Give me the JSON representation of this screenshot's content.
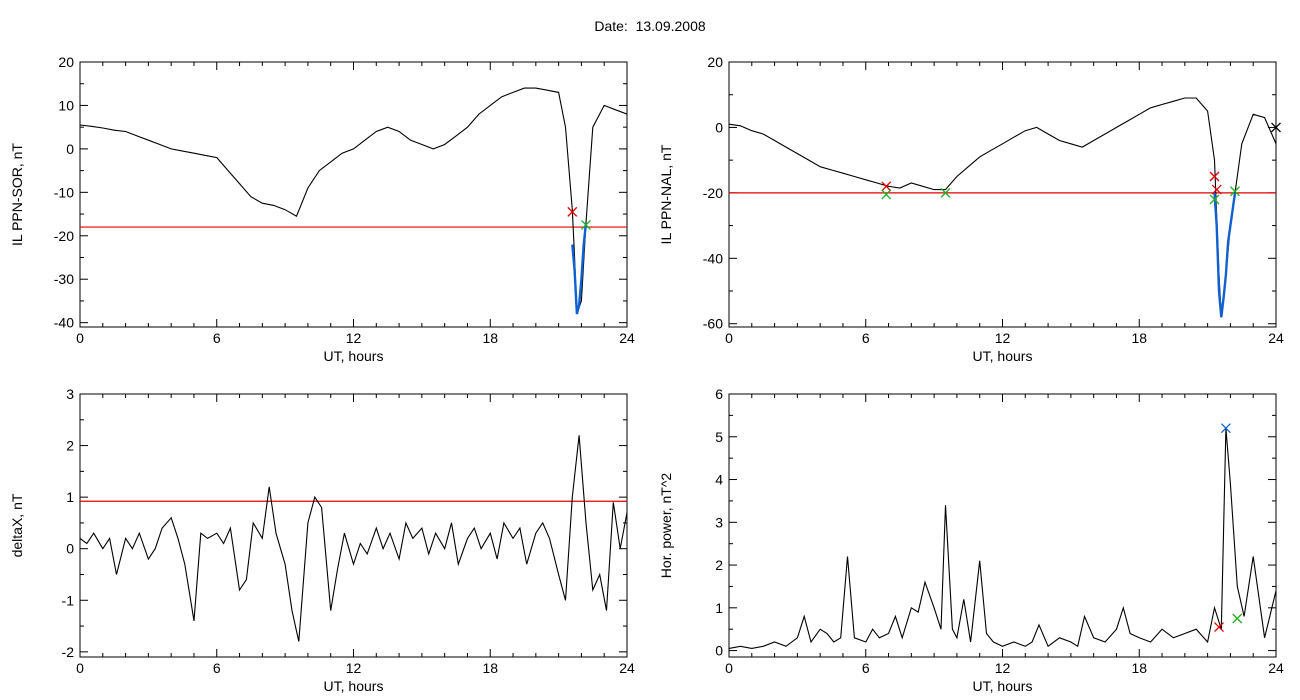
{
  "header": {
    "date_label": "Date:",
    "date_value": "13.09.2008"
  },
  "colors": {
    "line": "#000000",
    "threshold": "#e00000",
    "event": "#1060d0",
    "marker_red": "#e00000",
    "marker_green": "#20b020",
    "marker_blue": "#1060d0"
  },
  "chart_data": [
    {
      "type": "line",
      "xlabel": "UT, hours",
      "ylabel": "IL PPN-SOR, nT",
      "xlim": [
        0,
        24
      ],
      "ylim": [
        -41,
        20
      ],
      "xticks": [
        0,
        6,
        12,
        18,
        24
      ],
      "yticks": [
        -40,
        -30,
        -20,
        -10,
        0,
        10,
        20
      ],
      "threshold": -18,
      "series": [
        {
          "x": [
            0,
            0.5,
            1,
            1.5,
            2,
            2.5,
            3,
            3.5,
            4,
            4.5,
            5,
            5.5,
            6,
            6.5,
            7,
            7.5,
            8,
            8.5,
            9,
            9.5,
            10,
            10.5,
            11,
            11.5,
            12,
            12.5,
            13,
            13.5,
            14,
            14.5,
            15,
            15.5,
            16,
            16.5,
            17,
            17.5,
            18,
            18.5,
            19,
            19.5,
            20,
            20.5,
            21,
            21.3,
            21.6,
            21.7,
            21.8,
            22,
            22.2,
            22.5,
            23,
            23.5,
            24
          ],
          "y": [
            5.5,
            5.2,
            4.8,
            4.3,
            4,
            3,
            2,
            1,
            0,
            -0.5,
            -1,
            -1.5,
            -2,
            -5,
            -8,
            -11,
            -12.5,
            -13,
            -14,
            -15.5,
            -9,
            -5,
            -3,
            -1,
            0,
            2,
            4,
            5,
            4,
            2,
            1,
            0,
            1,
            3,
            5,
            8,
            10,
            12,
            13,
            14,
            14,
            13.5,
            13,
            5,
            -14,
            -25,
            -38,
            -35,
            -17,
            5,
            10,
            9,
            8
          ]
        }
      ],
      "event_segment": {
        "x": [
          21.6,
          21.7,
          21.8,
          21.9,
          22.0,
          22.1,
          22.2
        ],
        "y": [
          -22,
          -28,
          -38,
          -36,
          -30,
          -22,
          -17
        ]
      },
      "markers": [
        {
          "x": 21.6,
          "y": -14.5,
          "color": "red"
        },
        {
          "x": 22.2,
          "y": -17.5,
          "color": "green"
        }
      ]
    },
    {
      "type": "line",
      "xlabel": "UT, hours",
      "ylabel": "IL PPN-NAL, nT",
      "xlim": [
        0,
        24
      ],
      "ylim": [
        -61,
        20
      ],
      "xticks": [
        0,
        6,
        12,
        18,
        24
      ],
      "yticks": [
        -60,
        -40,
        -20,
        0,
        20
      ],
      "threshold": -20,
      "series": [
        {
          "x": [
            0,
            0.5,
            1,
            1.5,
            2,
            2.5,
            3,
            3.5,
            4,
            4.5,
            5,
            5.5,
            6,
            6.5,
            7,
            7.5,
            8,
            8.5,
            9,
            9.5,
            10,
            10.5,
            11,
            11.5,
            12,
            12.5,
            13,
            13.5,
            14,
            14.5,
            15,
            15.5,
            16,
            16.5,
            17,
            17.5,
            18,
            18.5,
            19,
            19.5,
            20,
            20.5,
            21,
            21.3,
            21.5,
            21.6,
            21.8,
            22,
            22.2,
            22.5,
            23,
            23.5,
            24
          ],
          "y": [
            1,
            0.5,
            -1,
            -2,
            -4,
            -6,
            -8,
            -10,
            -12,
            -13,
            -14,
            -15,
            -16,
            -17,
            -18,
            -18.5,
            -17,
            -18,
            -19,
            -19,
            -15,
            -12,
            -9,
            -7,
            -5,
            -3,
            -1,
            0,
            -2,
            -4,
            -5,
            -6,
            -4,
            -2,
            0,
            2,
            4,
            6,
            7,
            8,
            9,
            9,
            5,
            -10,
            -45,
            -58,
            -45,
            -30,
            -20,
            -5,
            4,
            3,
            -5
          ]
        }
      ],
      "event_segment": {
        "x": [
          21.3,
          21.4,
          21.5,
          21.6,
          21.7,
          21.8,
          21.9,
          22.0,
          22.1,
          22.2
        ],
        "y": [
          -20,
          -30,
          -50,
          -58,
          -52,
          -45,
          -35,
          -30,
          -25,
          -20
        ]
      },
      "markers": [
        {
          "x": 6.9,
          "y": -18,
          "color": "red"
        },
        {
          "x": 6.9,
          "y": -20.5,
          "color": "green"
        },
        {
          "x": 9.5,
          "y": -20,
          "color": "green"
        },
        {
          "x": 21.3,
          "y": -15,
          "color": "red"
        },
        {
          "x": 21.4,
          "y": -19,
          "color": "red"
        },
        {
          "x": 21.3,
          "y": -22,
          "color": "green"
        },
        {
          "x": 22.2,
          "y": -19.5,
          "color": "green"
        },
        {
          "x": 24,
          "y": 0,
          "color": "black"
        }
      ]
    },
    {
      "type": "line",
      "xlabel": "UT, hours",
      "ylabel": "deltaX, nT",
      "xlim": [
        0,
        24
      ],
      "ylim": [
        -2.1,
        3
      ],
      "xticks": [
        0,
        6,
        12,
        18,
        24
      ],
      "yticks": [
        -2,
        -1,
        0,
        1,
        2,
        3
      ],
      "threshold": 0.92,
      "series": [
        {
          "x": [
            0,
            0.3,
            0.6,
            1,
            1.3,
            1.6,
            2,
            2.3,
            2.6,
            3,
            3.3,
            3.6,
            4,
            4.3,
            4.6,
            5,
            5.3,
            5.6,
            6,
            6.3,
            6.6,
            7,
            7.3,
            7.6,
            8,
            8.3,
            8.6,
            9,
            9.3,
            9.6,
            10,
            10.3,
            10.6,
            11,
            11.3,
            11.6,
            12,
            12.3,
            12.6,
            13,
            13.3,
            13.6,
            14,
            14.3,
            14.6,
            15,
            15.3,
            15.6,
            16,
            16.3,
            16.6,
            17,
            17.3,
            17.6,
            18,
            18.3,
            18.6,
            19,
            19.3,
            19.6,
            20,
            20.3,
            20.6,
            21,
            21.3,
            21.6,
            21.9,
            22.2,
            22.5,
            22.8,
            23.1,
            23.4,
            23.7,
            24
          ],
          "y": [
            0.2,
            0.1,
            0.3,
            0,
            0.2,
            -0.5,
            0.2,
            0,
            0.3,
            -0.2,
            0,
            0.4,
            0.6,
            0.2,
            -0.3,
            -1.4,
            0.3,
            0.2,
            0.3,
            0.1,
            0.4,
            -0.8,
            -0.6,
            0.5,
            0.2,
            1.2,
            0.3,
            -0.3,
            -1.2,
            -1.8,
            0.5,
            1,
            0.8,
            -1.2,
            -0.4,
            0.3,
            -0.3,
            0.1,
            -0.1,
            0.4,
            0,
            0.3,
            -0.2,
            0.5,
            0.2,
            0.4,
            -0.1,
            0.3,
            0,
            0.5,
            -0.3,
            0.2,
            0.4,
            0,
            0.3,
            -0.2,
            0.5,
            0.2,
            0.4,
            -0.3,
            0.3,
            0.5,
            0.2,
            -0.5,
            -1,
            1,
            2.2,
            0.5,
            -0.8,
            -0.5,
            -1.2,
            0.9,
            0,
            0.7
          ]
        }
      ]
    },
    {
      "type": "line",
      "xlabel": "UT, hours",
      "ylabel": "Hor. power, nT^2",
      "xlim": [
        0,
        24
      ],
      "ylim": [
        -0.15,
        6
      ],
      "xticks": [
        0,
        6,
        12,
        18,
        24
      ],
      "yticks": [
        0,
        1,
        2,
        3,
        4,
        5,
        6
      ],
      "series": [
        {
          "x": [
            0,
            0.5,
            1,
            1.5,
            2,
            2.5,
            3,
            3.3,
            3.6,
            4,
            4.3,
            4.6,
            4.9,
            5.2,
            5.5,
            6,
            6.3,
            6.6,
            7,
            7.3,
            7.6,
            8,
            8.3,
            8.6,
            9,
            9.3,
            9.5,
            9.8,
            10,
            10.3,
            10.6,
            11,
            11.3,
            11.6,
            12,
            12.5,
            13,
            13.3,
            13.6,
            14,
            14.5,
            15,
            15.3,
            15.6,
            16,
            16.5,
            17,
            17.3,
            17.6,
            18,
            18.5,
            19,
            19.5,
            20,
            20.5,
            21,
            21.3,
            21.6,
            21.8,
            22,
            22.3,
            22.6,
            23,
            23.5,
            24
          ],
          "y": [
            0.05,
            0.1,
            0.05,
            0.1,
            0.2,
            0.1,
            0.3,
            0.8,
            0.2,
            0.5,
            0.4,
            0.2,
            0.3,
            2.2,
            0.3,
            0.2,
            0.5,
            0.3,
            0.4,
            0.8,
            0.3,
            1,
            0.9,
            1.6,
            1,
            0.5,
            3.4,
            0.5,
            0.3,
            1.2,
            0.2,
            2.1,
            0.4,
            0.2,
            0.1,
            0.2,
            0.1,
            0.2,
            0.6,
            0.1,
            0.3,
            0.2,
            0.1,
            0.8,
            0.3,
            0.2,
            0.5,
            1,
            0.4,
            0.3,
            0.2,
            0.5,
            0.3,
            0.4,
            0.5,
            0.2,
            1,
            0.5,
            5.2,
            3.9,
            1.5,
            0.8,
            2.2,
            0.3,
            1.4
          ]
        }
      ],
      "markers": [
        {
          "x": 21.8,
          "y": 5.2,
          "color": "blue"
        },
        {
          "x": 21.5,
          "y": 0.55,
          "color": "red"
        },
        {
          "x": 22.3,
          "y": 0.75,
          "color": "green"
        }
      ]
    }
  ]
}
